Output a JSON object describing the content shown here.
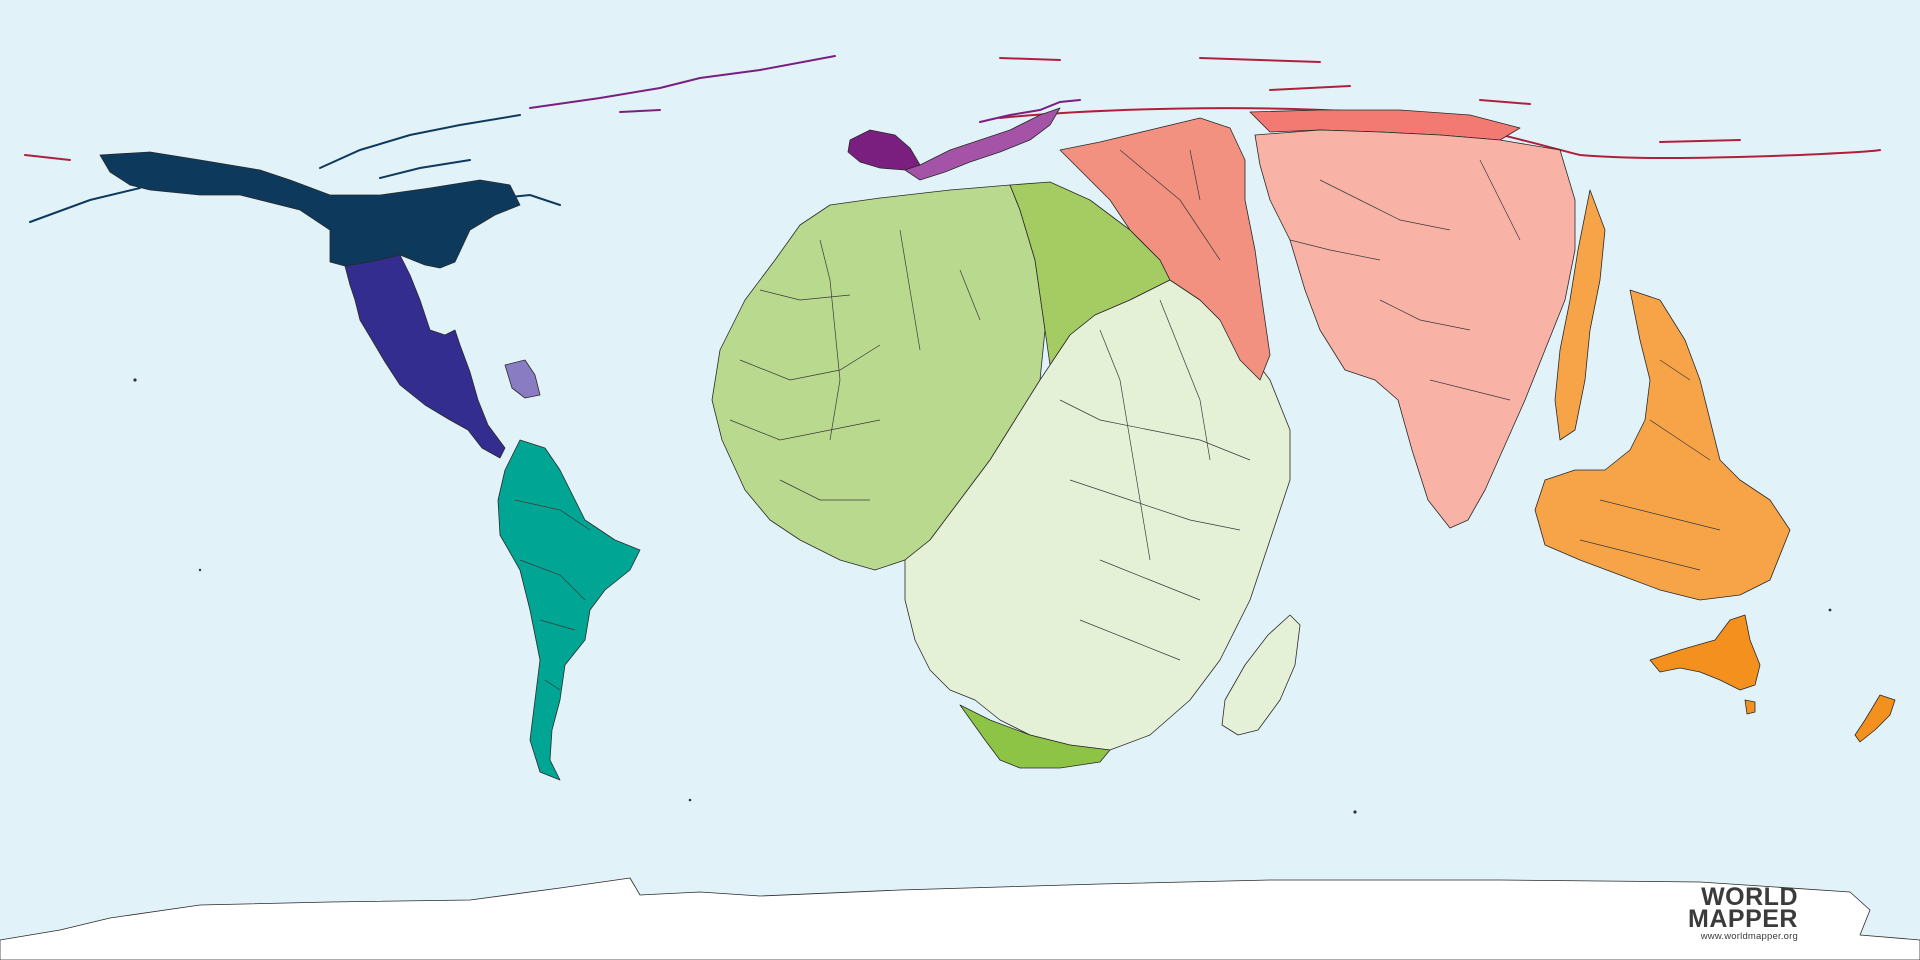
{
  "logo": {
    "line1": "WORLD",
    "line2": "MAPPER",
    "url": "www.worldmapper.org"
  },
  "colors": {
    "ocean": "#e2f2f9",
    "antarctica": "#ffffff",
    "north_america": "#0d3a5c",
    "central_america": "#322d8e",
    "caribbean": "#8a7cc2",
    "south_america": "#00a593",
    "western_europe": "#7a1f80",
    "eastern_europe": "#a553a6",
    "russia_arctic": "#b0203a",
    "west_africa": "#b8d98e",
    "north_africa": "#a4cc62",
    "central_east_africa": "#e4f1d6",
    "southern_africa": "#8dc446",
    "middle_east": "#f39181",
    "south_asia": "#f9b3a6",
    "east_asia": "#f37a73",
    "southeast_asia": "#f7a448",
    "oceania": "#f4901d"
  }
}
